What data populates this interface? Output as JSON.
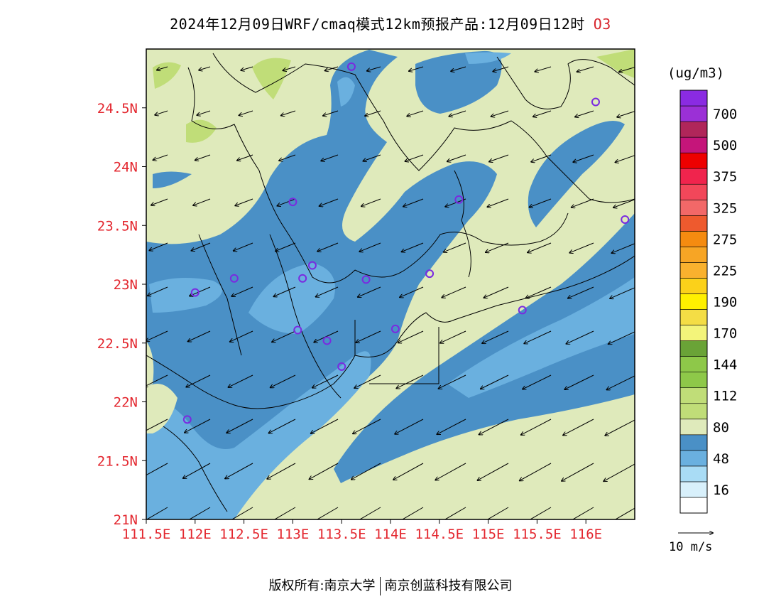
{
  "title": {
    "text": "2024年12月09日WRF/cmaq模式12km预报产品:12月09日12时",
    "species": "O3"
  },
  "map": {
    "lon_range": [
      111.5,
      116.5
    ],
    "lat_range": [
      21.0,
      25.0
    ],
    "lat_ticks": [
      {
        "value": 21.0,
        "label": "21N"
      },
      {
        "value": 21.5,
        "label": "21.5N"
      },
      {
        "value": 22.0,
        "label": "22N"
      },
      {
        "value": 22.5,
        "label": "22.5N"
      },
      {
        "value": 23.0,
        "label": "23N"
      },
      {
        "value": 23.5,
        "label": "23.5N"
      },
      {
        "value": 24.0,
        "label": "24N"
      },
      {
        "value": 24.5,
        "label": "24.5N"
      }
    ],
    "lon_ticks": [
      {
        "value": 111.5,
        "label": "111.5E"
      },
      {
        "value": 112.0,
        "label": "112E"
      },
      {
        "value": 112.5,
        "label": "112.5E"
      },
      {
        "value": 113.0,
        "label": "113E"
      },
      {
        "value": 113.5,
        "label": "113.5E"
      },
      {
        "value": 114.0,
        "label": "114E"
      },
      {
        "value": 114.5,
        "label": "114.5E"
      },
      {
        "value": 115.0,
        "label": "115E"
      },
      {
        "value": 115.5,
        "label": "115.5E"
      },
      {
        "value": 116.0,
        "label": "116E"
      }
    ],
    "stations": [
      {
        "lon": 113.6,
        "lat": 24.85
      },
      {
        "lon": 116.1,
        "lat": 24.55
      },
      {
        "lon": 113.0,
        "lat": 23.7
      },
      {
        "lon": 114.7,
        "lat": 23.72
      },
      {
        "lon": 116.4,
        "lat": 23.55
      },
      {
        "lon": 112.4,
        "lat": 23.05
      },
      {
        "lon": 113.2,
        "lat": 23.16
      },
      {
        "lon": 113.1,
        "lat": 23.05
      },
      {
        "lon": 113.75,
        "lat": 23.04
      },
      {
        "lon": 114.4,
        "lat": 23.09
      },
      {
        "lon": 112.0,
        "lat": 22.93
      },
      {
        "lon": 115.35,
        "lat": 22.78
      },
      {
        "lon": 113.05,
        "lat": 22.61
      },
      {
        "lon": 114.05,
        "lat": 22.62
      },
      {
        "lon": 113.35,
        "lat": 22.52
      },
      {
        "lon": 113.5,
        "lat": 22.3
      },
      {
        "lon": 111.92,
        "lat": 21.85
      }
    ],
    "wind_direction": "from-northeast",
    "colors": {
      "level_80_112": "#dfeabb",
      "level_48_80": "#4a90c6",
      "level_16_48": "#6ab0df",
      "level_112_144": "#c0dd78",
      "station": "#7a2ae0",
      "axis_label": "#e3262e"
    }
  },
  "colorbar": {
    "unit": "(ug/m3)",
    "levels": [
      {
        "label": "",
        "color": "#ffffff"
      },
      {
        "label": "16",
        "color": "#d8f0fb"
      },
      {
        "label": "",
        "color": "#a9dcf5"
      },
      {
        "label": "48",
        "color": "#6ab0df"
      },
      {
        "label": "",
        "color": "#4a90c6"
      },
      {
        "label": "80",
        "color": "#dfeabb"
      },
      {
        "label": "",
        "color": "#c0dd78"
      },
      {
        "label": "112",
        "color": "#c0dd78"
      },
      {
        "label": "",
        "color": "#8ec849"
      },
      {
        "label": "144",
        "color": "#8ec849"
      },
      {
        "label": "",
        "color": "#6aa337"
      },
      {
        "label": "170",
        "color": "#f3f47a"
      },
      {
        "label": "",
        "color": "#f4dd45"
      },
      {
        "label": "190",
        "color": "#fff000"
      },
      {
        "label": "",
        "color": "#fbd11a"
      },
      {
        "label": "225",
        "color": "#f9b12e"
      },
      {
        "label": "",
        "color": "#f7a525"
      },
      {
        "label": "275",
        "color": "#f58b10"
      },
      {
        "label": "",
        "color": "#ee5a2e"
      },
      {
        "label": "325",
        "color": "#f26868"
      },
      {
        "label": "",
        "color": "#f2475a"
      },
      {
        "label": "375",
        "color": "#f0244d"
      },
      {
        "label": "",
        "color": "#ee0000"
      },
      {
        "label": "500",
        "color": "#c5157a"
      },
      {
        "label": "",
        "color": "#b0265a"
      },
      {
        "label": "700",
        "color": "#9b30d6"
      },
      {
        "label": "",
        "color": "#8a2be2"
      }
    ]
  },
  "wind_reference": {
    "label": "10 m/s"
  },
  "footer": {
    "copyright_left": "版权所有:南京大学",
    "copyright_right": "南京创蓝科技有限公司"
  }
}
